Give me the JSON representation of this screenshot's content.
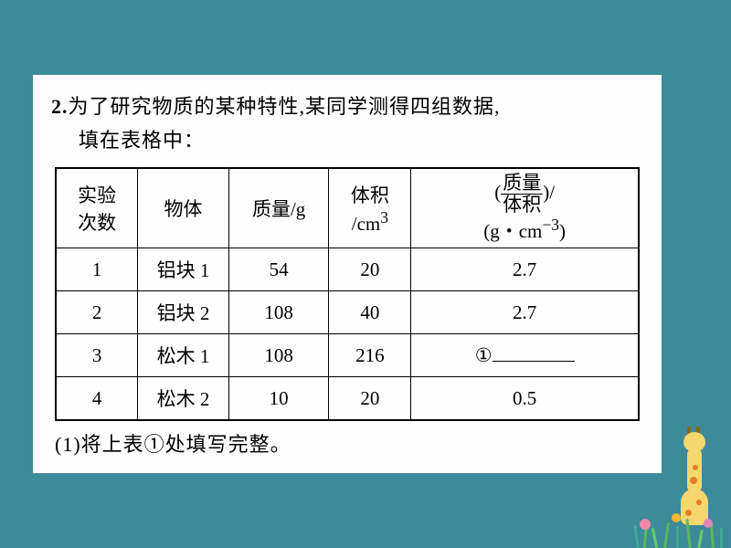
{
  "question": {
    "number": "2.",
    "text_line1": "为了研究物质的某种特性,某同学测得四组数据,",
    "text_line2": "填在表格中：",
    "sub_question": "(1)将上表①处填写完整。"
  },
  "table": {
    "headers": {
      "col1_line1": "实验",
      "col1_line2": "次数",
      "col2": "物体",
      "col3": "质量/g",
      "col4_line1": "体积",
      "col4_line2": "/cm",
      "col4_sup": "3",
      "col5_frac_top": "质量",
      "col5_frac_bot": "体积",
      "col5_suffix": ")/",
      "col5_unit_pre": "(g・cm",
      "col5_unit_sup": "−3",
      "col5_unit_post": ")"
    },
    "rows": [
      {
        "num": "1",
        "obj": "铝块 1",
        "mass": "54",
        "vol": "20",
        "ratio": "2.7"
      },
      {
        "num": "2",
        "obj": "铝块 2",
        "mass": "108",
        "vol": "40",
        "ratio": "2.7"
      },
      {
        "num": "3",
        "obj": "松木 1",
        "mass": "108",
        "vol": "216",
        "ratio": "①"
      },
      {
        "num": "4",
        "obj": "松木 2",
        "mass": "10",
        "vol": "20",
        "ratio": "0.5"
      }
    ]
  },
  "colors": {
    "background": "#3d8a99",
    "content_bg": "#fefefe",
    "text": "#000000",
    "border": "#000000"
  }
}
